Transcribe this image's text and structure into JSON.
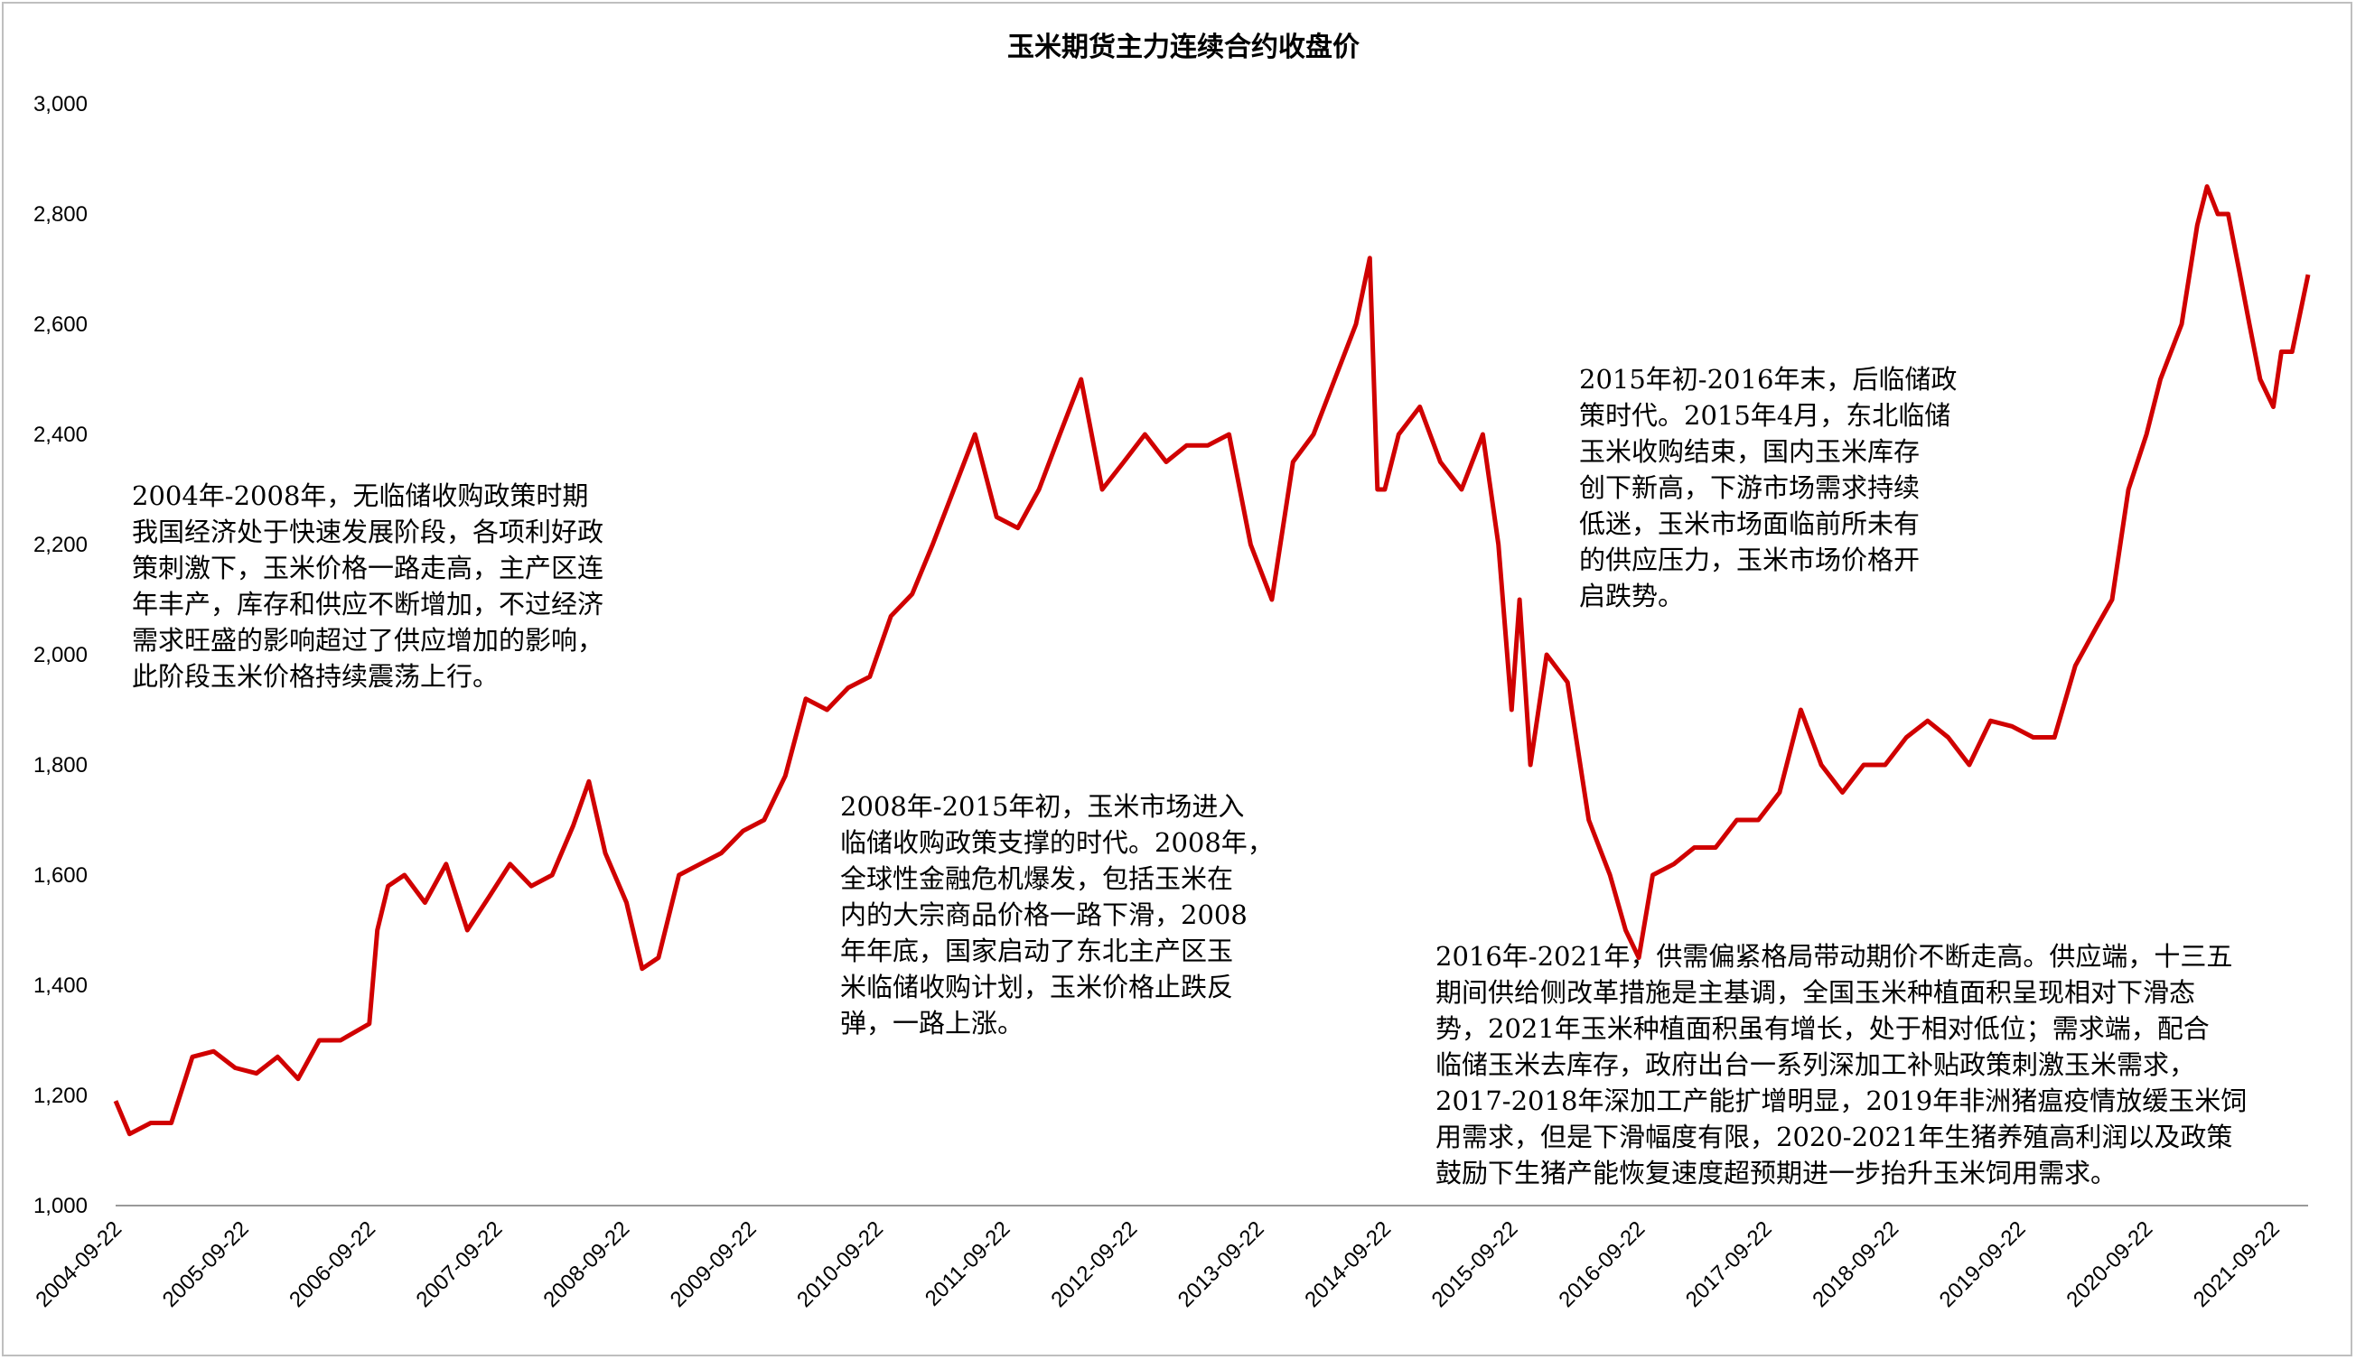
{
  "chart_data": {
    "type": "line",
    "title": "玉米期货主力连续合约收盘价",
    "xlabel": "",
    "ylabel": "",
    "ylim": [
      1000,
      3000
    ],
    "y_ticks": [
      "1,000",
      "1,200",
      "1,400",
      "1,600",
      "1,800",
      "2,000",
      "2,200",
      "2,400",
      "2,600",
      "2,800",
      "3,000"
    ],
    "x_ticks": [
      "2004-09-22",
      "2005-09-22",
      "2006-09-22",
      "2007-09-22",
      "2008-09-22",
      "2009-09-22",
      "2010-09-22",
      "2011-09-22",
      "2012-09-22",
      "2013-09-22",
      "2014-09-22",
      "2015-09-22",
      "2016-09-22",
      "2017-09-22",
      "2018-09-22",
      "2019-09-22",
      "2020-09-22",
      "2021-09-22"
    ],
    "x_range": [
      "2004-09-22",
      "2021-12-31"
    ],
    "grid": false,
    "line_color": "#d00000",
    "series": [
      {
        "x": [
          "2004-09-22",
          "2004-11-01",
          "2005-01-01",
          "2005-03-01",
          "2005-05-01",
          "2005-07-01",
          "2005-09-01",
          "2005-11-01",
          "2006-01-01",
          "2006-03-01",
          "2006-05-01",
          "2006-07-01",
          "2006-09-22",
          "2006-10-15",
          "2006-11-15",
          "2007-01-01",
          "2007-03-01",
          "2007-05-01",
          "2007-07-01",
          "2007-09-01",
          "2007-11-01",
          "2008-01-01",
          "2008-03-01",
          "2008-05-01",
          "2008-06-15",
          "2008-08-01",
          "2008-10-01",
          "2008-11-15",
          "2009-01-01",
          "2009-03-01",
          "2009-05-01",
          "2009-07-01",
          "2009-09-01",
          "2009-11-01",
          "2010-01-01",
          "2010-03-01",
          "2010-05-01",
          "2010-07-01",
          "2010-09-01",
          "2010-11-01",
          "2011-01-01",
          "2011-03-01",
          "2011-05-01",
          "2011-07-01",
          "2011-09-01",
          "2011-11-01",
          "2012-01-01",
          "2012-03-01",
          "2012-05-01",
          "2012-07-01",
          "2012-09-01",
          "2012-11-01",
          "2013-01-01",
          "2013-03-01",
          "2013-05-01",
          "2013-07-01",
          "2013-09-01",
          "2013-11-01",
          "2014-01-01",
          "2014-03-01",
          "2014-05-01",
          "2014-07-01",
          "2014-08-10",
          "2014-09-01",
          "2014-09-22",
          "2014-11-01",
          "2015-01-01",
          "2015-03-01",
          "2015-05-01",
          "2015-07-01",
          "2015-08-15",
          "2015-09-22",
          "2015-10-15",
          "2015-11-15",
          "2016-01-01",
          "2016-03-01",
          "2016-05-01",
          "2016-07-01",
          "2016-08-15",
          "2016-09-22",
          "2016-11-01",
          "2017-01-01",
          "2017-03-01",
          "2017-05-01",
          "2017-07-01",
          "2017-09-01",
          "2017-11-01",
          "2018-01-01",
          "2018-03-01",
          "2018-05-01",
          "2018-07-01",
          "2018-09-01",
          "2018-11-01",
          "2019-01-01",
          "2019-03-01",
          "2019-05-01",
          "2019-07-01",
          "2019-09-01",
          "2019-11-01",
          "2020-01-01",
          "2020-03-01",
          "2020-05-01",
          "2020-06-15",
          "2020-08-01",
          "2020-09-22",
          "2020-11-01",
          "2021-01-01",
          "2021-02-15",
          "2021-03-15",
          "2021-04-15",
          "2021-05-15",
          "2021-06-15",
          "2021-07-15",
          "2021-08-15",
          "2021-09-22",
          "2021-10-15",
          "2021-11-15",
          "2021-12-31"
        ],
        "y": [
          1190,
          1130,
          1150,
          1150,
          1270,
          1280,
          1250,
          1240,
          1270,
          1230,
          1300,
          1300,
          1330,
          1500,
          1580,
          1600,
          1550,
          1620,
          1500,
          1560,
          1620,
          1580,
          1600,
          1690,
          1770,
          1640,
          1550,
          1430,
          1450,
          1600,
          1620,
          1640,
          1680,
          1700,
          1780,
          1920,
          1900,
          1940,
          1960,
          2070,
          2110,
          2200,
          2300,
          2400,
          2250,
          2230,
          2300,
          2400,
          2500,
          2300,
          2350,
          2400,
          2350,
          2380,
          2380,
          2400,
          2200,
          2100,
          2350,
          2400,
          2500,
          2600,
          2720,
          2300,
          2300,
          2400,
          2450,
          2350,
          2300,
          2400,
          2200,
          1900,
          2100,
          1800,
          2000,
          1950,
          1700,
          1600,
          1500,
          1450,
          1600,
          1620,
          1650,
          1650,
          1700,
          1700,
          1750,
          1900,
          1800,
          1750,
          1800,
          1800,
          1850,
          1880,
          1850,
          1800,
          1880,
          1870,
          1850,
          1850,
          1980,
          2050,
          2100,
          2300,
          2400,
          2500,
          2600,
          2780,
          2850,
          2800,
          2800,
          2700,
          2600,
          2500,
          2450,
          2550,
          2550,
          2690
        ]
      }
    ]
  },
  "annotations": [
    {
      "lines": [
        "2004年-2008年，无临储收购政策时期",
        "我国经济处于快速发展阶段，各项利好政",
        "策刺激下，玉米价格一路走高，主产区连",
        "年丰产，库存和供应不断增加，不过经济",
        "需求旺盛的影响超过了供应增加的影响，",
        "此阶段玉米价格持续震荡上行。"
      ]
    },
    {
      "lines": [
        "2008年-2015年初，玉米市场进入",
        "临储收购政策支撑的时代。2008年，",
        "全球性金融危机爆发，包括玉米在",
        "内的大宗商品价格一路下滑，2008",
        "年年底，国家启动了东北主产区玉",
        "米临储收购计划，玉米价格止跌反",
        "弹，一路上涨。"
      ]
    },
    {
      "lines": [
        "2015年初-2016年末，后临储政",
        "策时代。2015年4月，东北临储",
        "玉米收购结束，国内玉米库存",
        "创下新高，下游市场需求持续",
        "低迷，玉米市场面临前所未有",
        "的供应压力，玉米市场价格开",
        "启跌势。"
      ]
    },
    {
      "lines": [
        "2016年-2021年，供需偏紧格局带动期价不断走高。供应端，十三五",
        "期间供给侧改革措施是主基调，全国玉米种植面积呈现相对下滑态",
        "势，2021年玉米种植面积虽有增长，处于相对低位；需求端，配合",
        "临储玉米去库存，政府出台一系列深加工补贴政策刺激玉米需求，",
        "2017-2018年深加工产能扩增明显，2019年非洲猪瘟疫情放缓玉米饲",
        "用需求，但是下滑幅度有限，2020-2021年生猪养殖高利润以及政策",
        "鼓励下生猪产能恢复速度超预期进一步抬升玉米饲用需求。"
      ]
    }
  ]
}
